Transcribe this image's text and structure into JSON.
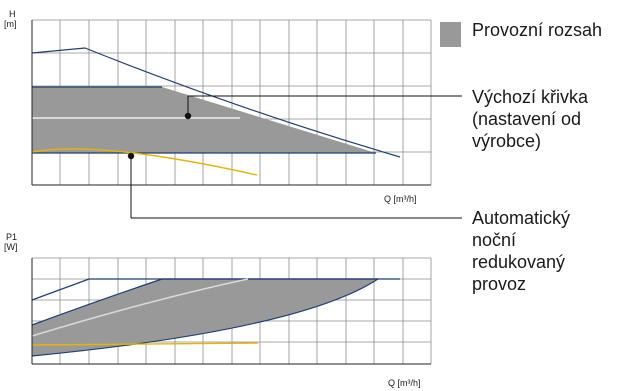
{
  "top_chart": {
    "y_label": "H",
    "y_unit": "[m]",
    "x_label": "Q [m³/h]"
  },
  "bottom_chart": {
    "y_label": "P1",
    "y_unit": "[W]",
    "x_label": "Q [m³/h]"
  },
  "legend": {
    "label": "Provozní rozsah",
    "swatch_color": "#999999"
  },
  "annotations": {
    "default_curve": [
      "Výchozí křivka",
      "(nastavení od",
      "výrobce)"
    ],
    "night_mode": [
      "Automatický",
      "noční",
      "redukovaný",
      "provoz"
    ]
  },
  "colors": {
    "grid": "#8c8c8c",
    "band_fill": "#999999",
    "boundary": "#1f3f73",
    "default_curve": "#d9d9d9",
    "night_curve": "#e8b400",
    "axis": "#222222"
  }
}
